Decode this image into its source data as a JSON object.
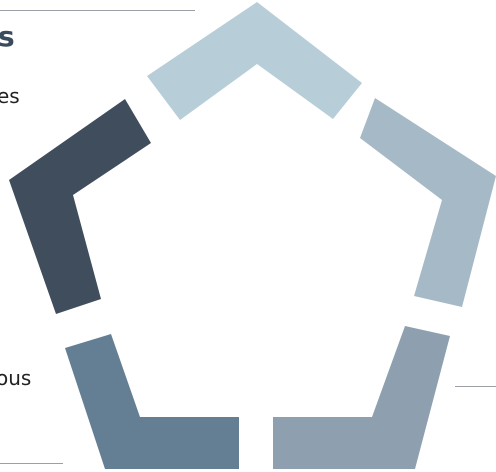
{
  "text_fragments": {
    "heading": "s",
    "top": "es",
    "bottom": "ous"
  },
  "pentagon_segments": [
    {
      "name": "top",
      "color": "#b7cdd8"
    },
    {
      "name": "upper-right",
      "color": "#a6b9c6"
    },
    {
      "name": "lower-right",
      "color": "#8e9faf"
    },
    {
      "name": "lower-left",
      "color": "#647f94"
    },
    {
      "name": "upper-left",
      "color": "#3f4d5c"
    }
  ]
}
